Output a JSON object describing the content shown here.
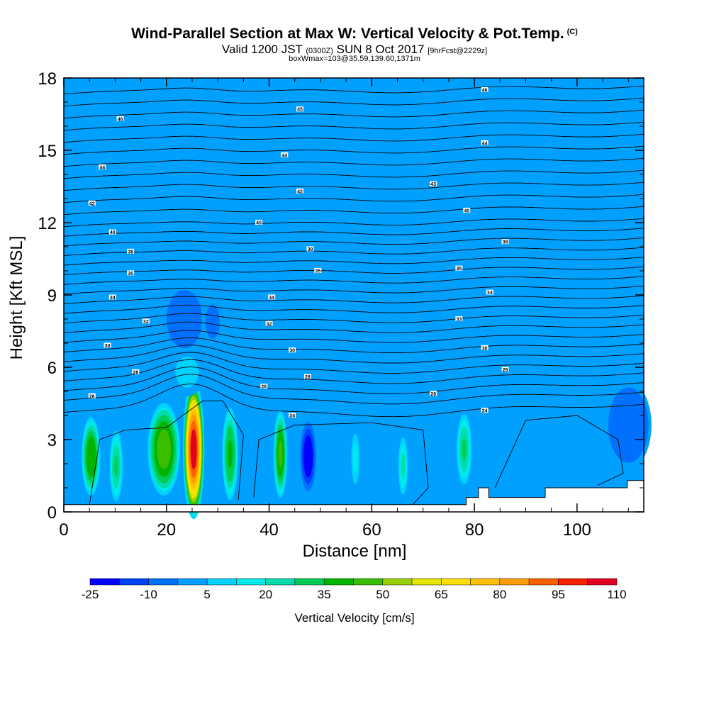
{
  "header": {
    "title": "Wind-Parallel Section at Max W: Vertical Velocity & Pot.Temp.",
    "copyright": "(C)",
    "valid_prefix": "Valid 1200 JST",
    "valid_zulu": "(0300Z)",
    "valid_date": "SUN 8 Oct 2017",
    "forecast": "[9hrFcst@2229z]",
    "boxwmax": "boxWmax=103@35.59,139.60,1371m"
  },
  "chart_data": {
    "type": "heatmap",
    "title": "Wind-Parallel Section at Max W: Vertical Velocity & Pot.Temp.",
    "xlabel": "Distance [nm]",
    "ylabel": "Height [Kft MSL]",
    "xlim": [
      0,
      113
    ],
    "ylim": [
      0,
      18
    ],
    "xticks": [
      0,
      20,
      40,
      60,
      80,
      100
    ],
    "yticks": [
      0,
      3,
      6,
      9,
      12,
      15,
      18
    ],
    "grid": false,
    "background_value_cm_s": 0,
    "colorbar": {
      "label": "Vertical Velocity [cm/s]",
      "min": -25,
      "max": 110,
      "step": 7.5,
      "tick_labels": [
        "-25",
        "-10",
        "5",
        "20",
        "35",
        "50",
        "65",
        "80",
        "95",
        "110"
      ],
      "colors": [
        "#0000ff",
        "#0040ff",
        "#0070ff",
        "#00a0ff",
        "#00d2ff",
        "#00eaea",
        "#00ddaa",
        "#00cc55",
        "#00b400",
        "#3cbe00",
        "#9ad000",
        "#e6e600",
        "#ffe000",
        "#ffc000",
        "#ff9c00",
        "#ff6000",
        "#ff2000",
        "#e00020",
        "#b40050",
        "#8a0066",
        "#6a0080"
      ]
    },
    "vertical_velocity_cells": [
      {
        "x": 5.3,
        "z": 2.3,
        "value": 42,
        "x_halfwidth": 1.9,
        "z_halfwidth": 1.7
      },
      {
        "x": 10.2,
        "z": 1.9,
        "value": 28,
        "x_halfwidth": 1.4,
        "z_halfwidth": 1.6
      },
      {
        "x": 19.5,
        "z": 2.6,
        "value": 48,
        "x_halfwidth": 3.3,
        "z_halfwidth": 2.0
      },
      {
        "x": 25.3,
        "z": 2.6,
        "value": 103,
        "x_halfwidth": 2.1,
        "z_halfwidth": 2.9
      },
      {
        "x": 32.4,
        "z": 2.4,
        "value": 38,
        "x_halfwidth": 1.6,
        "z_halfwidth": 2.0
      },
      {
        "x": 42.2,
        "z": 2.4,
        "value": 46,
        "x_halfwidth": 1.4,
        "z_halfwidth": 1.9
      },
      {
        "x": 47.6,
        "z": 2.3,
        "value": -24,
        "x_halfwidth": 1.6,
        "z_halfwidth": 1.5
      },
      {
        "x": 56.8,
        "z": 2.2,
        "value": 15,
        "x_halfwidth": 0.9,
        "z_halfwidth": 1.2
      },
      {
        "x": 66.1,
        "z": 1.9,
        "value": 22,
        "x_halfwidth": 1.0,
        "z_halfwidth": 1.3
      },
      {
        "x": 78.0,
        "z": 2.6,
        "value": 28,
        "x_halfwidth": 1.6,
        "z_halfwidth": 1.6
      },
      {
        "x": 110.0,
        "z": 3.6,
        "value": -8,
        "x_halfwidth": 4.5,
        "z_halfwidth": 1.8
      },
      {
        "x": 23.5,
        "z": 8.0,
        "value": -8,
        "x_halfwidth": 4.0,
        "z_halfwidth": 1.4
      },
      {
        "x": 29.0,
        "z": 7.9,
        "value": -5,
        "x_halfwidth": 2.0,
        "z_halfwidth": 1.0
      },
      {
        "x": 24.0,
        "z": 5.8,
        "value": 8,
        "x_halfwidth": 3.5,
        "z_halfwidth": 1.0
      }
    ],
    "series": [
      {
        "name": "46",
        "label_x": [
          82
        ],
        "y": [
          17.5
        ]
      },
      {
        "name": "46",
        "label_x": [
          11
        ],
        "y": [
          16.3
        ]
      },
      {
        "name": "45",
        "label_x": [
          46
        ],
        "y": [
          16.7
        ]
      },
      {
        "name": "44",
        "label_x": [
          82
        ],
        "y": [
          15.3
        ]
      },
      {
        "name": "44",
        "label_x": [
          43
        ],
        "y": [
          14.8
        ]
      },
      {
        "name": "44",
        "label_x": [
          7.5
        ],
        "y": [
          14.3
        ]
      },
      {
        "name": "43",
        "label_x": [
          72
        ],
        "y": [
          13.6
        ]
      },
      {
        "name": "42",
        "label_x": [
          46
        ],
        "y": [
          13.3
        ]
      },
      {
        "name": "42",
        "label_x": [
          5.5
        ],
        "y": [
          12.8
        ]
      },
      {
        "name": "40",
        "label_x": [
          78.5
        ],
        "y": [
          12.5
        ]
      },
      {
        "name": "40",
        "label_x": [
          38
        ],
        "y": [
          12.0
        ]
      },
      {
        "name": "40",
        "label_x": [
          9.5
        ],
        "y": [
          11.6
        ]
      },
      {
        "name": "38",
        "label_x": [
          86
        ],
        "y": [
          11.2
        ]
      },
      {
        "name": "38",
        "label_x": [
          48
        ],
        "y": [
          10.9
        ]
      },
      {
        "name": "38",
        "label_x": [
          13
        ],
        "y": [
          10.8
        ]
      },
      {
        "name": "35",
        "label_x": [
          77
        ],
        "y": [
          10.1
        ]
      },
      {
        "name": "35",
        "label_x": [
          49.5
        ],
        "y": [
          10.0
        ]
      },
      {
        "name": "35",
        "label_x": [
          13
        ],
        "y": [
          9.9
        ]
      },
      {
        "name": "34",
        "label_x": [
          83
        ],
        "y": [
          9.1
        ]
      },
      {
        "name": "34",
        "label_x": [
          40.5
        ],
        "y": [
          8.9
        ]
      },
      {
        "name": "34",
        "label_x": [
          9.5
        ],
        "y": [
          8.9
        ]
      },
      {
        "name": "33",
        "label_x": [
          77
        ],
        "y": [
          8.0
        ]
      },
      {
        "name": "32",
        "label_x": [
          40
        ],
        "y": [
          7.8
        ]
      },
      {
        "name": "32",
        "label_x": [
          16
        ],
        "y": [
          7.9
        ]
      },
      {
        "name": "30",
        "label_x": [
          82
        ],
        "y": [
          6.8
        ]
      },
      {
        "name": "30",
        "label_x": [
          44.5
        ],
        "y": [
          6.7
        ]
      },
      {
        "name": "30",
        "label_x": [
          8.5
        ],
        "y": [
          6.9
        ]
      },
      {
        "name": "28",
        "label_x": [
          86
        ],
        "y": [
          5.9
        ]
      },
      {
        "name": "28",
        "label_x": [
          47.5
        ],
        "y": [
          5.6
        ]
      },
      {
        "name": "28",
        "label_x": [
          14
        ],
        "y": [
          5.8
        ]
      },
      {
        "name": "26",
        "label_x": [
          72
        ],
        "y": [
          4.9
        ]
      },
      {
        "name": "26",
        "label_x": [
          39
        ],
        "y": [
          5.2
        ]
      },
      {
        "name": "26",
        "label_x": [
          5.5
        ],
        "y": [
          4.8
        ]
      },
      {
        "name": "24",
        "label_x": [
          82
        ],
        "y": [
          4.2
        ]
      },
      {
        "name": "24",
        "label_x": [
          44.5
        ],
        "y": [
          4.0
        ]
      }
    ],
    "theta_contour_levels": [
      {
        "y0": 17.5,
        "amp": 0.25
      },
      {
        "y0": 17.0,
        "amp": 0.25
      },
      {
        "y0": 16.5,
        "amp": 0.25
      },
      {
        "y0": 16.0,
        "amp": 0.25
      },
      {
        "y0": 15.5,
        "amp": 0.25
      },
      {
        "y0": 15.0,
        "amp": 0.25
      },
      {
        "y0": 14.5,
        "amp": 0.25
      },
      {
        "y0": 14.0,
        "amp": 0.25
      },
      {
        "y0": 13.5,
        "amp": 0.25
      },
      {
        "y0": 13.0,
        "amp": 0.25
      },
      {
        "y0": 12.5,
        "amp": 0.22
      },
      {
        "y0": 12.0,
        "amp": 0.2
      },
      {
        "y0": 11.6,
        "amp": 0.2
      },
      {
        "y0": 11.2,
        "amp": 0.2
      },
      {
        "y0": 10.8,
        "amp": 0.2
      },
      {
        "y0": 10.4,
        "amp": 0.2
      },
      {
        "y0": 10.0,
        "amp": 0.2
      },
      {
        "y0": 9.6,
        "amp": 0.22
      },
      {
        "y0": 9.2,
        "amp": 0.25
      },
      {
        "y0": 8.8,
        "amp": 0.3
      },
      {
        "y0": 8.4,
        "amp": 0.35
      },
      {
        "y0": 8.0,
        "amp": 0.4
      },
      {
        "y0": 7.6,
        "amp": 0.45
      },
      {
        "y0": 7.2,
        "amp": 0.5
      },
      {
        "y0": 6.8,
        "amp": 0.6
      },
      {
        "y0": 6.4,
        "amp": 0.7
      },
      {
        "y0": 6.0,
        "amp": 0.8
      },
      {
        "y0": 5.6,
        "amp": 0.9
      },
      {
        "y0": 5.2,
        "amp": 1.0
      },
      {
        "y0": 4.8,
        "amp": 1.1
      },
      {
        "y0": 4.3,
        "amp": 1.2
      }
    ],
    "terrain_height_kft": [
      {
        "x_from": 0,
        "x_to": 78.4,
        "z": 0.3
      },
      {
        "x_from": 78.4,
        "x_to": 80.8,
        "z": 0.6
      },
      {
        "x_from": 80.8,
        "x_to": 82.8,
        "z": 1.0
      },
      {
        "x_from": 82.8,
        "x_to": 93.8,
        "z": 0.6
      },
      {
        "x_from": 93.8,
        "x_to": 105.8,
        "z": 1.0
      },
      {
        "x_from": 105.8,
        "x_to": 109.8,
        "z": 1.0
      },
      {
        "x_from": 109.8,
        "x_to": 113,
        "z": 1.3
      }
    ]
  }
}
